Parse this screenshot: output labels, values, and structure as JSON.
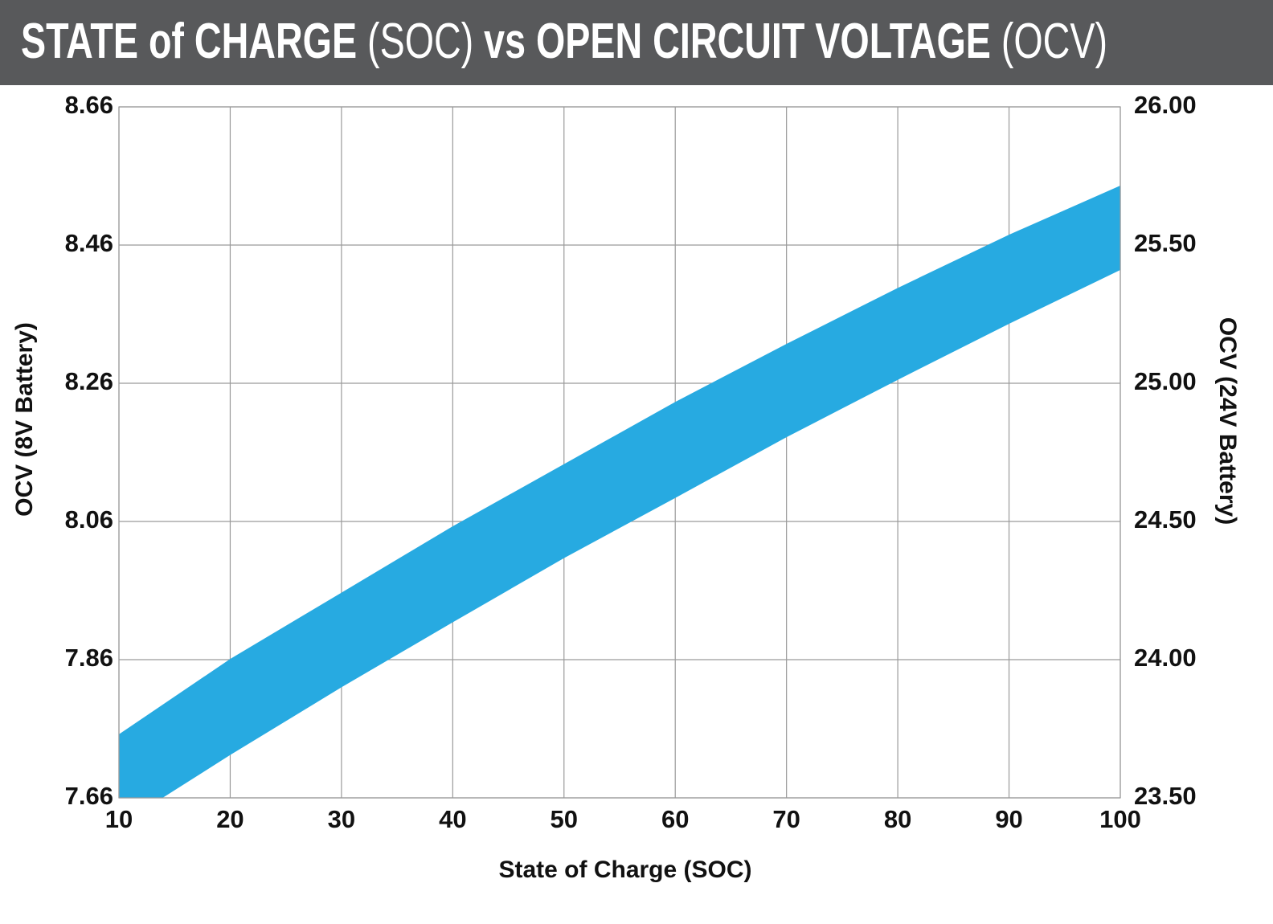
{
  "chart_data": {
    "type": "band",
    "title": "STATE of CHARGE (SOC) vs OPEN CIRCUIT VOLTAGE (OCV)",
    "x_label": "State of Charge (SOC)",
    "y_label": "OCV (8V Battery)",
    "y2_label": "OCV (24V Battery)",
    "x": [
      10,
      20,
      30,
      40,
      50,
      60,
      70,
      80,
      90,
      100
    ],
    "high": [
      7.752,
      7.861,
      7.957,
      8.053,
      8.143,
      8.233,
      8.317,
      8.398,
      8.475,
      8.546
    ],
    "low": [
      7.62,
      7.722,
      7.82,
      7.914,
      8.007,
      8.094,
      8.182,
      8.265,
      8.346,
      8.424
    ],
    "color": "#27aae1",
    "xlim": [
      10,
      100
    ],
    "xticks": [
      10,
      20,
      30,
      40,
      50,
      60,
      70,
      80,
      90,
      100
    ],
    "ylim": [
      7.66,
      8.66
    ],
    "yticks": [
      7.66,
      7.86,
      8.06,
      8.26,
      8.46,
      8.66
    ],
    "y2lim": [
      23.5,
      26
    ],
    "y2ticks": [
      {
        "value": 23.5,
        "label": "23.50"
      },
      {
        "value": 24,
        "label": "24.00"
      },
      {
        "value": 24.5,
        "label": "24.50"
      },
      {
        "value": 25,
        "label": "25.00"
      },
      {
        "value": 25.5,
        "label": "25.50"
      },
      {
        "value": 26,
        "label": "26.00"
      }
    ],
    "grid": true
  }
}
